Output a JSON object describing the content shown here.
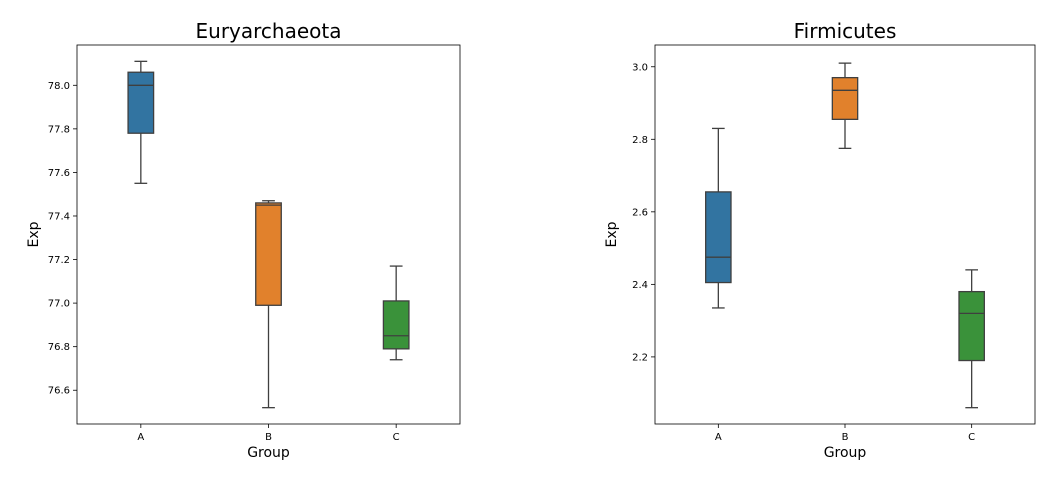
{
  "chart_data": [
    {
      "type": "box",
      "title": "Euryarchaeota",
      "xlabel": "Group",
      "ylabel": "Exp",
      "ylim": [
        76.445,
        78.185
      ],
      "yticks": [
        "76.6",
        "76.8",
        "77.0",
        "77.2",
        "77.4",
        "77.6",
        "77.8",
        "78.0"
      ],
      "categories": [
        "A",
        "B",
        "C"
      ],
      "colors": [
        "#3274a1",
        "#e1812c",
        "#3a923a"
      ],
      "boxes": [
        {
          "group": "A",
          "whislo": 77.55,
          "q1": 77.78,
          "med": 78.0,
          "q3": 78.06,
          "whishi": 78.11
        },
        {
          "group": "B",
          "whislo": 76.52,
          "q1": 76.99,
          "med": 77.45,
          "q3": 77.46,
          "whishi": 77.47
        },
        {
          "group": "C",
          "whislo": 76.74,
          "q1": 76.79,
          "med": 76.85,
          "q3": 77.01,
          "whishi": 77.17
        }
      ]
    },
    {
      "type": "box",
      "title": "Firmicutes",
      "xlabel": "Group",
      "ylabel": "Exp",
      "ylim": [
        2.015,
        3.06
      ],
      "yticks": [
        "2.2",
        "2.4",
        "2.6",
        "2.8",
        "3.0"
      ],
      "categories": [
        "A",
        "B",
        "C"
      ],
      "colors": [
        "#3274a1",
        "#e1812c",
        "#3a923a"
      ],
      "boxes": [
        {
          "group": "A",
          "whislo": 2.335,
          "q1": 2.405,
          "med": 2.475,
          "q3": 2.655,
          "whishi": 2.83
        },
        {
          "group": "B",
          "whislo": 2.775,
          "q1": 2.855,
          "med": 2.935,
          "q3": 2.97,
          "whishi": 3.01
        },
        {
          "group": "C",
          "whislo": 2.06,
          "q1": 2.19,
          "med": 2.32,
          "q3": 2.38,
          "whishi": 2.44
        }
      ]
    }
  ]
}
